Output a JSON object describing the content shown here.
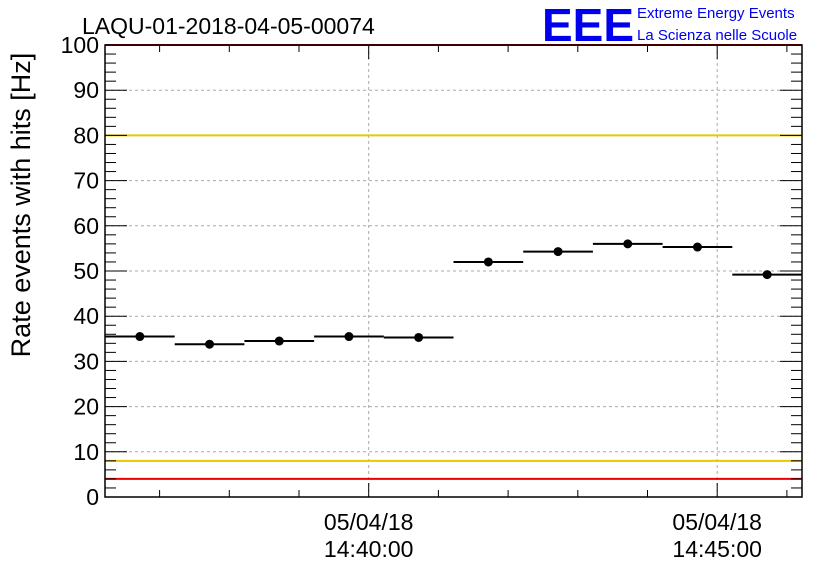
{
  "chart_data": {
    "type": "scatter",
    "title": "LAQU-01-2018-04-05-00074",
    "xlabel": "",
    "ylabel": "Rate events with hits [Hz]",
    "ylim": [
      0,
      100
    ],
    "y_ticks": [
      "0",
      "10",
      "20",
      "30",
      "40",
      "50",
      "60",
      "70",
      "80",
      "90",
      "100"
    ],
    "x_ticks": [
      {
        "date": "05/04/18",
        "time": "14:40:00"
      },
      {
        "date": "05/04/18",
        "time": "14:45:00"
      }
    ],
    "grid": true,
    "reference_lines": [
      {
        "value": 100,
        "color": "#ee0000"
      },
      {
        "value": 80,
        "color": "#e8c800"
      },
      {
        "value": 8,
        "color": "#e8c800"
      },
      {
        "value": 4,
        "color": "#ee0000"
      }
    ],
    "points": [
      {
        "x_start": "14:36:13",
        "x_end": "14:37:13",
        "y": 35.5
      },
      {
        "x_start": "14:37:13",
        "x_end": "14:38:13",
        "y": 33.8
      },
      {
        "x_start": "14:38:13",
        "x_end": "14:39:13",
        "y": 34.5
      },
      {
        "x_start": "14:39:13",
        "x_end": "14:40:13",
        "y": 35.5
      },
      {
        "x_start": "14:40:13",
        "x_end": "14:41:13",
        "y": 35.3
      },
      {
        "x_start": "14:41:13",
        "x_end": "14:42:13",
        "y": 52.0
      },
      {
        "x_start": "14:42:13",
        "x_end": "14:43:13",
        "y": 54.3
      },
      {
        "x_start": "14:43:13",
        "x_end": "14:44:13",
        "y": 56.0
      },
      {
        "x_start": "14:44:13",
        "x_end": "14:45:13",
        "y": 55.3
      },
      {
        "x_start": "14:45:13",
        "x_end": "14:46:13",
        "y": 49.2
      }
    ],
    "point_color": "#000000"
  },
  "logo": {
    "mark": "EEE",
    "line1": "Extreme Energy Events",
    "line2": "La Scienza nelle Scuole",
    "color": "#0000ee"
  }
}
